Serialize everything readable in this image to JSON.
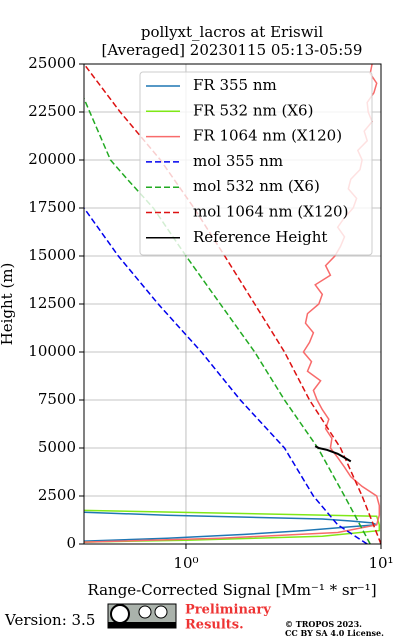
{
  "chart_data": {
    "type": "line",
    "title": "pollyxt_lacros at Eriswil",
    "subtitle": "[Averaged] 20230115 05:13-05:59",
    "x_label": "Range-Corrected Signal [Mm⁻¹ * sr⁻¹]",
    "y_label": "Height (m)",
    "x_log": true,
    "grid": true,
    "legend": "upper right",
    "xlim": [
      0.3,
      10
    ],
    "xticks": [
      {
        "value": 1,
        "label": "10⁰"
      },
      {
        "value": 10,
        "label": "10¹"
      }
    ],
    "ylim": [
      0,
      25000
    ],
    "yticks": [
      0,
      2500,
      5000,
      7500,
      10000,
      12500,
      15000,
      17500,
      20000,
      22500,
      25000
    ],
    "series": [
      {
        "name": "FR 355 nm",
        "color": "#1f77b4",
        "style": "solid",
        "heights": [
          150,
          300,
          500,
          700,
          900,
          1000,
          1100,
          1200,
          1300,
          1400,
          1500,
          1650
        ],
        "values": [
          0.3,
          0.8,
          2,
          4,
          7,
          9.5,
          9,
          7,
          5,
          2,
          0.8,
          0.3
        ]
      },
      {
        "name": "FR 532 nm (X6)",
        "color": "#7fe817",
        "style": "solid",
        "heights": [
          100,
          200,
          400,
          700,
          1000,
          1450,
          1550,
          1750
        ],
        "values": [
          0.3,
          1,
          5,
          9.8,
          9.8,
          9.5,
          3,
          0.3
        ]
      },
      {
        "name": "FR 1064 nm (X120)",
        "color": "#f86b6b",
        "style": "solid",
        "heights": [
          100,
          300,
          600,
          1000,
          1500,
          2000,
          2500,
          3000,
          3500,
          4000,
          4500,
          5000,
          5500,
          6000,
          6500,
          7000,
          7500,
          8000,
          8500,
          9000,
          9500,
          10000,
          10500,
          11000,
          11500,
          12000,
          12500,
          13000,
          13500,
          14000,
          14500,
          15000,
          15500,
          16000,
          16500,
          17000,
          17500,
          18000,
          18500,
          19000,
          19500,
          20000,
          20500,
          21000,
          21500,
          22000,
          22500,
          23000,
          23500,
          24000,
          24500,
          25000
        ],
        "values": [
          0.3,
          1.5,
          6,
          9.5,
          9.8,
          9.8,
          9.5,
          8,
          7,
          6.5,
          6,
          5.5,
          5.6,
          5.2,
          5.4,
          5,
          4.7,
          4.5,
          4.9,
          4.2,
          4.4,
          4,
          4.3,
          4.5,
          4.1,
          4.2,
          4.8,
          5,
          4.6,
          5.5,
          5.2,
          5.8,
          6.2,
          6.5,
          6,
          6.5,
          7.2,
          7.5,
          6.8,
          7,
          7.8,
          8,
          7.6,
          8.5,
          8.2,
          9,
          8.6,
          8.5,
          9.2,
          9.5,
          8.8,
          9
        ]
      },
      {
        "name": "mol 355 nm",
        "color": "#0000ee",
        "style": "dashed",
        "heights": [
          0,
          1000,
          2500,
          5000,
          7500,
          10000,
          12500,
          15000,
          17500
        ],
        "values": [
          8.5,
          6,
          4.5,
          3.2,
          1.9,
          1.2,
          0.72,
          0.45,
          0.3
        ]
      },
      {
        "name": "mol 532 nm (X6)",
        "color": "#22aa22",
        "style": "dashed",
        "heights": [
          0,
          2500,
          5000,
          7500,
          10000,
          12500,
          15000,
          17500,
          19000,
          20000,
          23200
        ],
        "values": [
          8.8,
          6.5,
          4.75,
          3.2,
          2.25,
          1.5,
          1.0,
          0.68,
          0.5,
          0.41,
          0.3
        ]
      },
      {
        "name": "mol 1064 nm (X120)",
        "color": "#dd1111",
        "style": "dashed",
        "heights": [
          0,
          2500,
          5000,
          7500,
          10000,
          12500,
          15000,
          17500,
          20000,
          22500,
          25000
        ],
        "values": [
          10,
          8,
          6.2,
          4.3,
          3.2,
          2.25,
          1.58,
          1.1,
          0.74,
          0.46,
          0.3
        ]
      },
      {
        "name": "Reference Height",
        "color": "#000000",
        "style": "solid",
        "heights": [
          4300,
          4500,
          4700,
          4900,
          5000,
          5100
        ],
        "values": [
          7,
          6.5,
          6,
          5.3,
          4.8,
          4.6
        ]
      }
    ]
  },
  "footer": {
    "version": "Version: 3.5",
    "preliminary": [
      "Preliminary",
      "Results."
    ],
    "copyright": [
      "© TROPOS 2023.",
      "CC BY SA 4.0 License."
    ]
  }
}
